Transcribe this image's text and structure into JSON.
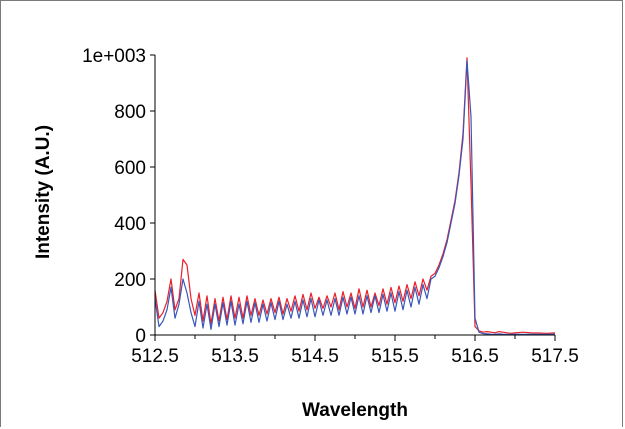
{
  "chart_data": {
    "type": "line",
    "xlabel": "Wavelength",
    "ylabel": "Intensity (A.U.)",
    "xlim": [
      512.5,
      517.5
    ],
    "ylim": [
      0,
      1000
    ],
    "x_ticks": [
      "512.5",
      "513.5",
      "514.5",
      "515.5",
      "516.5",
      "517.5"
    ],
    "y_ticks": [
      "0",
      "200",
      "400",
      "600",
      "800",
      "1e+003"
    ],
    "grid": false,
    "series": [
      {
        "color": "#e8202a",
        "x": [
          512.5,
          512.55,
          512.6,
          512.65,
          512.7,
          512.75,
          512.8,
          512.85,
          512.9,
          512.95,
          513.0,
          513.05,
          513.1,
          513.15,
          513.2,
          513.25,
          513.3,
          513.35,
          513.4,
          513.45,
          513.5,
          513.55,
          513.6,
          513.65,
          513.7,
          513.75,
          513.8,
          513.85,
          513.9,
          513.95,
          514.0,
          514.05,
          514.1,
          514.15,
          514.2,
          514.25,
          514.3,
          514.35,
          514.4,
          514.45,
          514.5,
          514.55,
          514.6,
          514.65,
          514.7,
          514.75,
          514.8,
          514.85,
          514.9,
          514.95,
          515.0,
          515.05,
          515.1,
          515.15,
          515.2,
          515.25,
          515.3,
          515.35,
          515.4,
          515.45,
          515.5,
          515.55,
          515.6,
          515.65,
          515.7,
          515.75,
          515.8,
          515.85,
          515.9,
          515.95,
          516.0,
          516.05,
          516.1,
          516.15,
          516.2,
          516.25,
          516.3,
          516.35,
          516.4,
          516.45,
          516.5,
          516.55,
          516.6,
          516.65,
          516.7,
          516.75,
          516.8,
          516.85,
          516.9,
          516.95,
          517.0,
          517.1,
          517.2,
          517.3,
          517.4,
          517.5
        ],
        "y": [
          160,
          60,
          80,
          120,
          200,
          90,
          130,
          270,
          250,
          130,
          70,
          150,
          50,
          140,
          40,
          130,
          50,
          135,
          55,
          140,
          60,
          135,
          60,
          140,
          70,
          130,
          70,
          125,
          75,
          130,
          80,
          135,
          75,
          130,
          85,
          140,
          85,
          145,
          90,
          150,
          95,
          135,
          95,
          140,
          100,
          150,
          90,
          155,
          100,
          150,
          95,
          165,
          100,
          160,
          100,
          150,
          105,
          165,
          110,
          170,
          115,
          175,
          120,
          180,
          130,
          190,
          140,
          200,
          160,
          210,
          220,
          250,
          290,
          340,
          410,
          480,
          580,
          720,
          990,
          540,
          30,
          15,
          10,
          12,
          10,
          8,
          12,
          10,
          8,
          6,
          8,
          10,
          8,
          7,
          6,
          8
        ]
      },
      {
        "color": "#3a57b8",
        "x": [
          512.5,
          512.55,
          512.6,
          512.65,
          512.7,
          512.75,
          512.8,
          512.85,
          512.9,
          512.95,
          513.0,
          513.05,
          513.1,
          513.15,
          513.2,
          513.25,
          513.3,
          513.35,
          513.4,
          513.45,
          513.5,
          513.55,
          513.6,
          513.65,
          513.7,
          513.75,
          513.8,
          513.85,
          513.9,
          513.95,
          514.0,
          514.05,
          514.1,
          514.15,
          514.2,
          514.25,
          514.3,
          514.35,
          514.4,
          514.45,
          514.5,
          514.55,
          514.6,
          514.65,
          514.7,
          514.75,
          514.8,
          514.85,
          514.9,
          514.95,
          515.0,
          515.05,
          515.1,
          515.15,
          515.2,
          515.25,
          515.3,
          515.35,
          515.4,
          515.45,
          515.5,
          515.55,
          515.6,
          515.65,
          515.7,
          515.75,
          515.8,
          515.85,
          515.9,
          515.95,
          516.0,
          516.05,
          516.1,
          516.15,
          516.2,
          516.25,
          516.3,
          516.35,
          516.4,
          516.45,
          516.5,
          516.55,
          516.6,
          516.65,
          516.7,
          516.75,
          516.8,
          516.85,
          516.9,
          516.95,
          517.0,
          517.1,
          517.2,
          517.3,
          517.4,
          517.5
        ],
        "y": [
          130,
          30,
          50,
          90,
          170,
          60,
          110,
          200,
          150,
          80,
          30,
          120,
          25,
          110,
          20,
          110,
          30,
          115,
          35,
          120,
          35,
          110,
          40,
          120,
          45,
          115,
          45,
          110,
          50,
          115,
          55,
          120,
          55,
          110,
          60,
          120,
          60,
          125,
          65,
          130,
          65,
          125,
          70,
          125,
          70,
          130,
          70,
          135,
          75,
          135,
          75,
          140,
          75,
          140,
          80,
          140,
          80,
          145,
          85,
          150,
          85,
          155,
          90,
          160,
          100,
          170,
          110,
          180,
          130,
          200,
          210,
          240,
          280,
          330,
          400,
          470,
          570,
          700,
          980,
          780,
          60,
          10,
          5,
          4,
          3,
          2,
          4,
          3,
          2,
          2,
          3,
          2,
          3,
          2,
          2,
          3
        ]
      }
    ]
  }
}
